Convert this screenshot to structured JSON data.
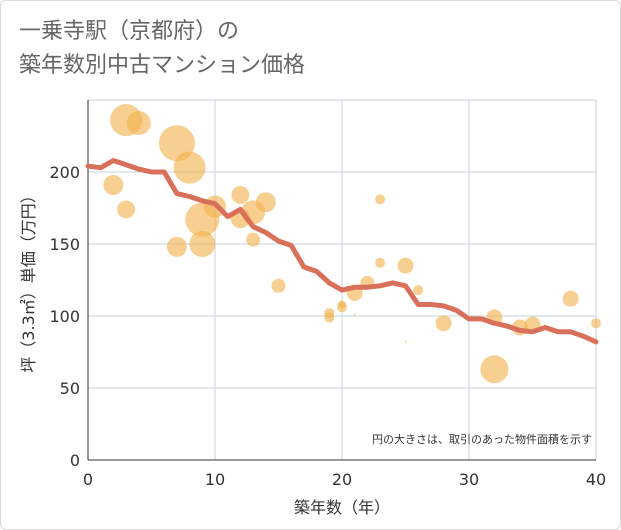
{
  "title": {
    "line1": "一乗寺駅（京都府）の",
    "line2": "築年数別中古マンション価格"
  },
  "colors": {
    "bubble": "#f2b24c",
    "line": "#d9705a",
    "grid": "#c9d3dc",
    "plot_bg": "#ffffff"
  },
  "chart_data": {
    "type": "scatter",
    "title": "一乗寺駅（京都府）の築年数別中古マンション価格",
    "xlabel": "築年数（年）",
    "ylabel": "坪（3.3㎡）単価（万円）",
    "xlim": [
      0,
      40
    ],
    "ylim": [
      0,
      250
    ],
    "xticks": [
      0,
      10,
      20,
      30,
      40
    ],
    "yticks": [
      0,
      50,
      100,
      150,
      200
    ],
    "grid": true,
    "note": "円の大きさは、取引のあった物件面積を示す",
    "bubbles": [
      {
        "x": 3,
        "y": 236,
        "size": 16
      },
      {
        "x": 4,
        "y": 234,
        "size": 12
      },
      {
        "x": 7,
        "y": 220,
        "size": 18
      },
      {
        "x": 8,
        "y": 203,
        "size": 16
      },
      {
        "x": 2,
        "y": 191,
        "size": 10
      },
      {
        "x": 3,
        "y": 174,
        "size": 9
      },
      {
        "x": 10,
        "y": 176,
        "size": 11
      },
      {
        "x": 9,
        "y": 167,
        "size": 17
      },
      {
        "x": 12,
        "y": 184,
        "size": 9
      },
      {
        "x": 14,
        "y": 179,
        "size": 10
      },
      {
        "x": 13,
        "y": 172,
        "size": 12
      },
      {
        "x": 12,
        "y": 168,
        "size": 10
      },
      {
        "x": 9,
        "y": 150,
        "size": 13
      },
      {
        "x": 7,
        "y": 148,
        "size": 10
      },
      {
        "x": 13,
        "y": 153,
        "size": 7
      },
      {
        "x": 15,
        "y": 121,
        "size": 7
      },
      {
        "x": 23,
        "y": 181,
        "size": 5
      },
      {
        "x": 23,
        "y": 137,
        "size": 5
      },
      {
        "x": 25,
        "y": 135,
        "size": 8
      },
      {
        "x": 26,
        "y": 118,
        "size": 5
      },
      {
        "x": 22,
        "y": 123,
        "size": 7
      },
      {
        "x": 21,
        "y": 116,
        "size": 8
      },
      {
        "x": 20,
        "y": 108,
        "size": 4
      },
      {
        "x": 20,
        "y": 106,
        "size": 5
      },
      {
        "x": 19,
        "y": 102,
        "size": 5
      },
      {
        "x": 19,
        "y": 99,
        "size": 5
      },
      {
        "x": 21,
        "y": 101,
        "size": 1
      },
      {
        "x": 25,
        "y": 82,
        "size": 1
      },
      {
        "x": 28,
        "y": 95,
        "size": 8
      },
      {
        "x": 32,
        "y": 99,
        "size": 8
      },
      {
        "x": 34,
        "y": 92,
        "size": 8
      },
      {
        "x": 35,
        "y": 94,
        "size": 8
      },
      {
        "x": 32,
        "y": 63,
        "size": 14
      },
      {
        "x": 38,
        "y": 112,
        "size": 8
      },
      {
        "x": 40,
        "y": 95,
        "size": 5
      }
    ],
    "line": {
      "x": [
        0,
        1,
        2,
        3,
        4,
        5,
        6,
        7,
        8,
        9,
        10,
        11,
        12,
        13,
        14,
        15,
        16,
        17,
        18,
        19,
        20,
        21,
        22,
        23,
        24,
        25,
        26,
        27,
        28,
        29,
        30,
        31,
        32,
        33,
        34,
        35,
        36,
        37,
        38,
        39,
        40
      ],
      "y": [
        204,
        203,
        208,
        205,
        202,
        200,
        200,
        185,
        183,
        180,
        178,
        169,
        174,
        162,
        158,
        152,
        149,
        134,
        131,
        123,
        118,
        120,
        120,
        121,
        123,
        121,
        108,
        108,
        107,
        104,
        98,
        98,
        95,
        93,
        90,
        89,
        92,
        89,
        89,
        86,
        82
      ]
    }
  }
}
